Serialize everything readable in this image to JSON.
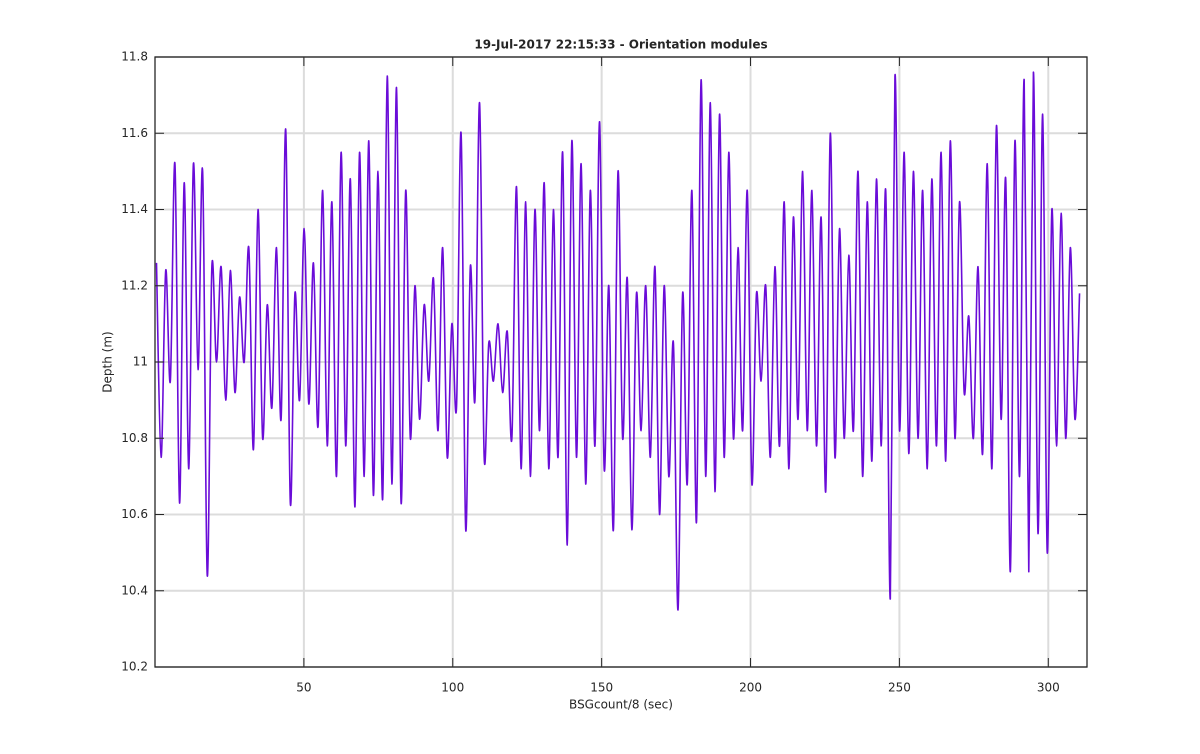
{
  "chart_data": {
    "type": "line",
    "title": "19-Jul-2017 22:15:33 - Orientation modules",
    "xlabel": "BSGcount/8 (sec)",
    "ylabel": "Depth (m)",
    "xlim": [
      0,
      313
    ],
    "ylim": [
      10.2,
      11.8
    ],
    "xticks": [
      50,
      100,
      150,
      200,
      250,
      300
    ],
    "yticks": [
      10.2,
      10.4,
      10.6,
      10.8,
      11,
      11.2,
      11.4,
      11.6,
      11.8
    ],
    "grid": true,
    "x": [
      0.5,
      2.05,
      3.6,
      5.15,
      6.7,
      8.25,
      9.8,
      11.35,
      12.9,
      14.45,
      16,
      17.55,
      19.1,
      20.65,
      22.2,
      23.75,
      25.3,
      26.85,
      28.4,
      29.95,
      31.5,
      33.05,
      34.6,
      36.15,
      37.7,
      39.25,
      40.8,
      42.35,
      43.9,
      45.45,
      47,
      48.55,
      50.1,
      51.65,
      53.2,
      54.75,
      56.3,
      57.85,
      59.4,
      60.95,
      62.5,
      64.05,
      65.6,
      67.15,
      68.7,
      70.25,
      71.8,
      73.35,
      74.9,
      76.45,
      78,
      79.55,
      81.1,
      82.65,
      84.2,
      85.75,
      87.3,
      88.85,
      90.4,
      91.95,
      93.5,
      95.05,
      96.6,
      98.15,
      99.7,
      101.25,
      102.8,
      104.35,
      105.9,
      107.45,
      109,
      110.55,
      112.1,
      113.65,
      115.2,
      116.75,
      118.3,
      119.85,
      121.4,
      122.95,
      124.5,
      126.05,
      127.6,
      129.15,
      130.7,
      132.25,
      133.8,
      135.35,
      136.9,
      138.45,
      140,
      141.55,
      143.1,
      144.65,
      146.2,
      147.75,
      149.3,
      150.85,
      152.4,
      153.95,
      155.5,
      157.05,
      158.6,
      160.15,
      161.7,
      163.25,
      164.8,
      166.35,
      167.9,
      169.45,
      171,
      172.55,
      174.1,
      175.65,
      177.2,
      178.75,
      180.3,
      181.85,
      183.4,
      184.95,
      186.5,
      188.05,
      189.6,
      191.15,
      192.7,
      194.25,
      195.8,
      197.35,
      198.9,
      200.45,
      202,
      203.55,
      205.1,
      206.65,
      208.2,
      209.75,
      211.3,
      212.85,
      214.4,
      215.95,
      217.5,
      219.05,
      220.6,
      222.15,
      223.7,
      225.25,
      226.8,
      228.35,
      229.9,
      231.45,
      233,
      234.55,
      236.1,
      237.65,
      239.2,
      240.75,
      242.3,
      243.85,
      245.4,
      246.95,
      248.5,
      250.05,
      251.6,
      253.15,
      254.7,
      256.25,
      257.8,
      259.35,
      260.9,
      262.45,
      264,
      265.55,
      267.1,
      268.65,
      270.2,
      271.75,
      273.3,
      274.85,
      276.4,
      277.95,
      279.5,
      281.05,
      282.6,
      284.15,
      285.7,
      287.25,
      288.8,
      290.35,
      291.9,
      293.45,
      295,
      296.55,
      298.1,
      299.65,
      301.2,
      302.75,
      304.3,
      305.85,
      307.4,
      308.95,
      310.5
    ],
    "series": [
      {
        "color": "#6a0cd8",
        "values": [
          11.26,
          10.75,
          11.24,
          10.95,
          11.52,
          10.63,
          11.47,
          10.72,
          11.52,
          10.98,
          11.5,
          10.44,
          11.25,
          11.0,
          11.25,
          10.9,
          11.24,
          10.92,
          11.17,
          11.0,
          11.3,
          10.77,
          11.4,
          10.8,
          11.15,
          10.88,
          11.3,
          10.85,
          11.61,
          10.63,
          11.18,
          10.9,
          11.35,
          10.89,
          11.26,
          10.83,
          11.45,
          10.78,
          11.42,
          10.7,
          11.55,
          10.78,
          11.48,
          10.62,
          11.55,
          10.7,
          11.58,
          10.65,
          11.5,
          10.64,
          11.75,
          10.68,
          11.72,
          10.63,
          11.45,
          10.8,
          11.2,
          10.85,
          11.15,
          10.95,
          11.22,
          10.82,
          11.3,
          10.75,
          11.1,
          10.88,
          11.6,
          10.56,
          11.25,
          10.9,
          11.68,
          10.75,
          11.05,
          10.95,
          11.1,
          10.92,
          11.08,
          10.8,
          11.46,
          10.72,
          11.42,
          10.7,
          11.4,
          10.82,
          11.47,
          10.72,
          11.4,
          10.75,
          11.55,
          10.52,
          11.58,
          10.75,
          11.52,
          10.68,
          11.45,
          10.78,
          11.63,
          10.72,
          11.2,
          10.56,
          11.5,
          10.8,
          11.22,
          10.56,
          11.18,
          10.82,
          11.2,
          10.75,
          11.25,
          10.6,
          11.2,
          10.7,
          11.05,
          10.35,
          11.18,
          10.68,
          11.45,
          10.58,
          11.74,
          10.7,
          11.68,
          10.66,
          11.65,
          10.75,
          11.55,
          10.8,
          11.3,
          10.82,
          11.45,
          10.68,
          11.18,
          10.95,
          11.2,
          10.75,
          11.25,
          10.78,
          11.42,
          10.72,
          11.38,
          10.85,
          11.5,
          10.82,
          11.45,
          10.78,
          11.38,
          10.66,
          11.6,
          10.75,
          11.35,
          10.8,
          11.28,
          10.82,
          11.5,
          10.7,
          11.42,
          10.74,
          11.48,
          10.78,
          11.45,
          10.38,
          11.75,
          10.82,
          11.55,
          10.76,
          11.5,
          10.8,
          11.45,
          10.72,
          11.48,
          10.78,
          11.55,
          10.74,
          11.58,
          10.8,
          11.42,
          10.92,
          11.12,
          10.8,
          11.25,
          10.76,
          11.52,
          10.72,
          11.62,
          10.85,
          11.48,
          10.45,
          11.58,
          10.7,
          11.74,
          10.45,
          11.76,
          10.55,
          11.65,
          10.5,
          11.4,
          10.78,
          11.39,
          10.8,
          11.3,
          10.85,
          11.18
        ]
      }
    ]
  }
}
